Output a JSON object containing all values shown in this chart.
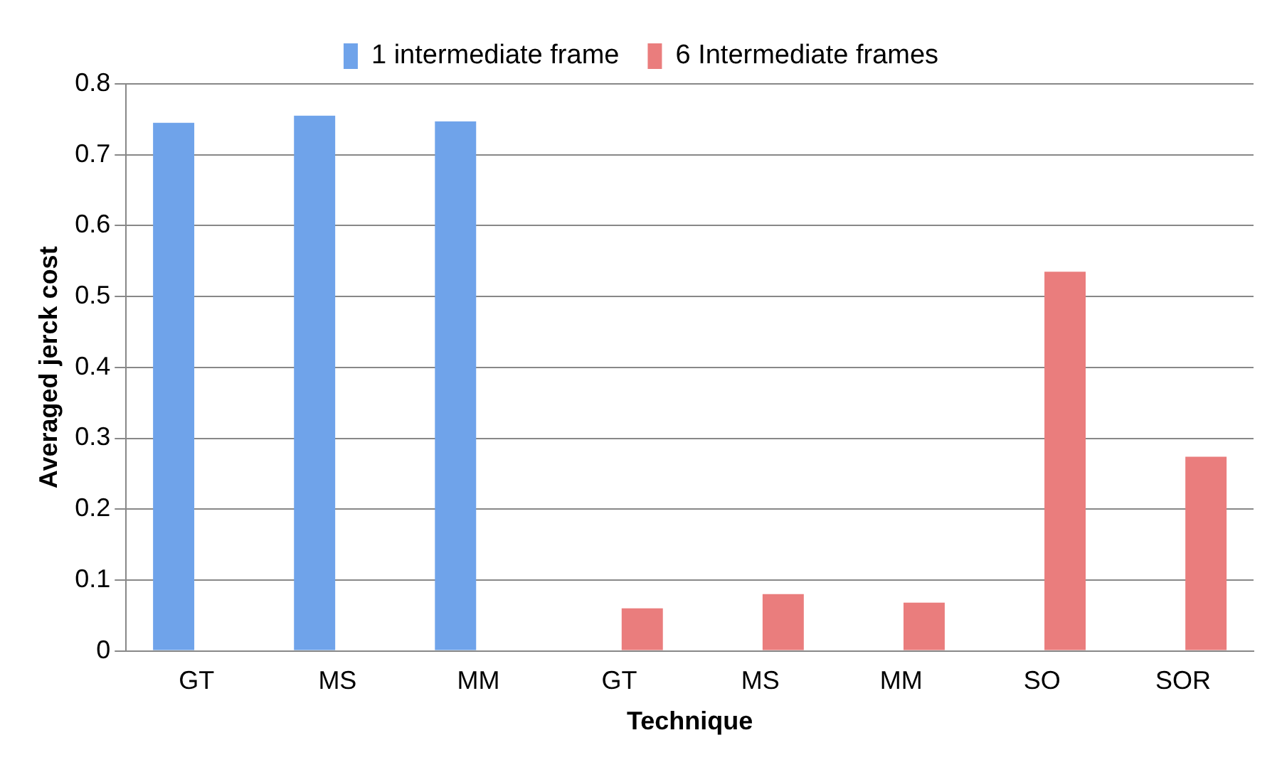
{
  "chart_data": {
    "type": "bar",
    "xlabel": "Technique",
    "ylabel": "Averaged jerck cost",
    "categories": [
      "GT",
      "MS",
      "MM",
      "GT",
      "MS",
      "MM",
      "SO",
      "SOR"
    ],
    "series": [
      {
        "name": "1 intermediate frame",
        "color": "#6fa3ea",
        "values": [
          0.745,
          0.755,
          0.747,
          null,
          null,
          null,
          null,
          null
        ]
      },
      {
        "name": "6 Intermediate frames",
        "color": "#ea7d7d",
        "values": [
          null,
          null,
          null,
          0.06,
          0.08,
          0.068,
          0.535,
          0.274
        ]
      }
    ],
    "ylim": [
      0,
      0.8
    ],
    "yticks": [
      0,
      0.1,
      0.2,
      0.3,
      0.4,
      0.5,
      0.6,
      0.7,
      0.8
    ],
    "grid": "y",
    "legend": "top"
  }
}
